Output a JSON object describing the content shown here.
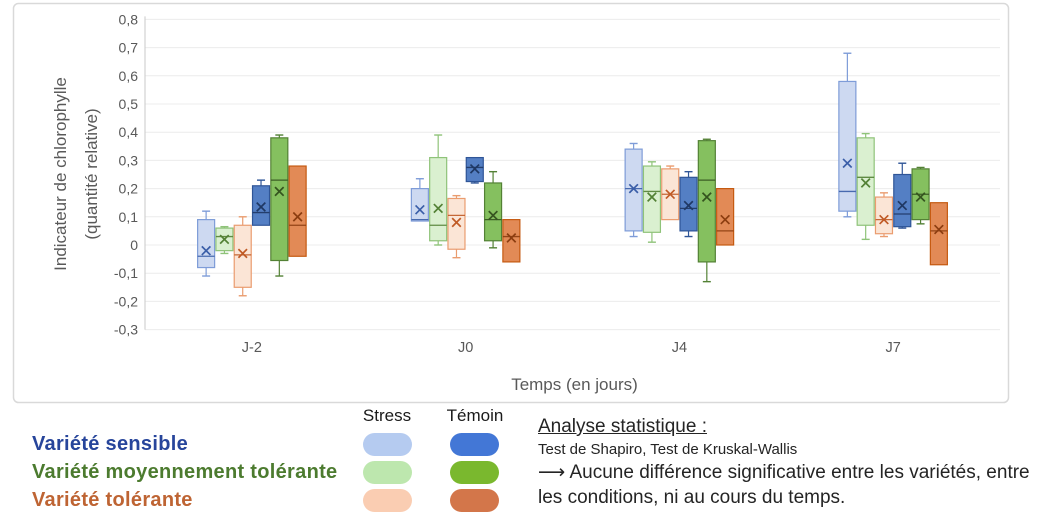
{
  "analysis": {
    "title": "Analyse statistique :",
    "line1": "Test de Shapiro, Test de Kruskal-Wallis",
    "arrow": "⟶",
    "line2": "Aucune différence significative entre les variétés, entre les conditions, ni au cours du temps."
  },
  "legend": {
    "headers": {
      "stress": "Stress",
      "temoin": "Témoin"
    },
    "rows": [
      {
        "id": "sensible",
        "label": "Variété sensible",
        "label_color": "#27459B",
        "stress_color": "#B5CBF0",
        "temoin_color": "#4377D6"
      },
      {
        "id": "moyenne",
        "label": "Variété moyennement tolérante",
        "label_color": "#4C7B2F",
        "stress_color": "#BDE7AE",
        "temoin_color": "#7AB82E"
      },
      {
        "id": "tolerante",
        "label": "Variété tolérante",
        "label_color": "#BE6433",
        "stress_color": "#FACDB2",
        "temoin_color": "#D3764A"
      }
    ]
  },
  "chart_data": {
    "type": "boxplot",
    "title": "",
    "xlabel": "Temps (en jours)",
    "ylabel_lines": [
      "Indicateur de chlorophylle",
      "(quantité relative)"
    ],
    "categories": [
      "J-2",
      "J0",
      "J4",
      "J7"
    ],
    "ylim": [
      -0.3,
      0.8
    ],
    "ytick_step": 0.1,
    "grid": true,
    "decimal_separator": ",",
    "colors": {
      "panel_border": "#D9D9D9",
      "gridline": "#ECECEC",
      "axis_line": "#C9C9C9",
      "tick_label": "#595959",
      "axis_title": "#595959"
    },
    "series": [
      {
        "name": "Variété sensible – Stress",
        "fill": "#CDD9F1",
        "stroke": "#7E9CD8",
        "accent": "#3A5EA8",
        "boxes": [
          {
            "min": -0.11,
            "q1": -0.08,
            "med": -0.04,
            "q3": 0.09,
            "max": 0.12,
            "mean": -0.02
          },
          {
            "min": 0.085,
            "q1": 0.085,
            "med": 0.09,
            "q3": 0.2,
            "max": 0.235,
            "mean": 0.125
          },
          {
            "min": 0.03,
            "q1": 0.05,
            "med": 0.2,
            "q3": 0.34,
            "max": 0.36,
            "mean": 0.2
          },
          {
            "min": 0.1,
            "q1": 0.12,
            "med": 0.19,
            "q3": 0.58,
            "max": 0.68,
            "mean": 0.29
          }
        ]
      },
      {
        "name": "Variété moyennement tolérante – Stress",
        "fill": "#DAF0D0",
        "stroke": "#8FC379",
        "accent": "#538135",
        "boxes": [
          {
            "min": -0.03,
            "q1": -0.02,
            "med": 0.03,
            "q3": 0.06,
            "max": 0.065,
            "mean": 0.02
          },
          {
            "min": 0.0,
            "q1": 0.015,
            "med": 0.07,
            "q3": 0.31,
            "max": 0.39,
            "mean": 0.13
          },
          {
            "min": 0.01,
            "q1": 0.045,
            "med": 0.19,
            "q3": 0.28,
            "max": 0.295,
            "mean": 0.17
          },
          {
            "min": 0.02,
            "q1": 0.07,
            "med": 0.24,
            "q3": 0.38,
            "max": 0.395,
            "mean": 0.22
          }
        ]
      },
      {
        "name": "Variété tolérante – Stress",
        "fill": "#FBE5D6",
        "stroke": "#EA9C6F",
        "accent": "#C05A25",
        "boxes": [
          {
            "min": -0.18,
            "q1": -0.15,
            "med": -0.035,
            "q3": 0.07,
            "max": 0.1,
            "mean": -0.03
          },
          {
            "min": -0.045,
            "q1": -0.015,
            "med": 0.105,
            "q3": 0.165,
            "max": 0.175,
            "mean": 0.08
          },
          {
            "min": 0.09,
            "q1": 0.09,
            "med": 0.18,
            "q3": 0.27,
            "max": 0.28,
            "mean": 0.18
          },
          {
            "min": 0.03,
            "q1": 0.04,
            "med": 0.09,
            "q3": 0.17,
            "max": 0.185,
            "mean": 0.09
          }
        ]
      },
      {
        "name": "Variété sensible – Témoin",
        "fill": "#547FC4",
        "stroke": "#2F5597",
        "accent": "#1F3864",
        "boxes": [
          {
            "min": 0.07,
            "q1": 0.07,
            "med": 0.115,
            "q3": 0.21,
            "max": 0.23,
            "mean": 0.135
          },
          {
            "min": 0.22,
            "q1": 0.225,
            "med": 0.275,
            "q3": 0.31,
            "max": 0.31,
            "mean": 0.27
          },
          {
            "min": 0.03,
            "q1": 0.05,
            "med": 0.13,
            "q3": 0.24,
            "max": 0.26,
            "mean": 0.14
          },
          {
            "min": 0.06,
            "q1": 0.065,
            "med": 0.11,
            "q3": 0.25,
            "max": 0.29,
            "mean": 0.14
          }
        ]
      },
      {
        "name": "Variété moyennement tolérante – Témoin",
        "fill": "#85C05F",
        "stroke": "#538135",
        "accent": "#35541F",
        "boxes": [
          {
            "min": -0.11,
            "q1": -0.055,
            "med": 0.23,
            "q3": 0.38,
            "max": 0.39,
            "mean": 0.19
          },
          {
            "min": -0.01,
            "q1": 0.015,
            "med": 0.09,
            "q3": 0.22,
            "max": 0.26,
            "mean": 0.105
          },
          {
            "min": -0.13,
            "q1": -0.06,
            "med": 0.23,
            "q3": 0.37,
            "max": 0.375,
            "mean": 0.17
          },
          {
            "min": 0.075,
            "q1": 0.09,
            "med": 0.18,
            "q3": 0.27,
            "max": 0.275,
            "mean": 0.17
          }
        ]
      },
      {
        "name": "Variété tolérante – Témoin",
        "fill": "#E28A56",
        "stroke": "#C55A11",
        "accent": "#8C3D10",
        "boxes": [
          {
            "min": -0.04,
            "q1": -0.04,
            "med": 0.07,
            "q3": 0.28,
            "max": 0.28,
            "mean": 0.1
          },
          {
            "min": -0.06,
            "q1": -0.06,
            "med": 0.03,
            "q3": 0.09,
            "max": 0.09,
            "mean": 0.025
          },
          {
            "min": 0.0,
            "q1": 0.0,
            "med": 0.05,
            "q3": 0.2,
            "max": 0.2,
            "mean": 0.09
          },
          {
            "min": -0.07,
            "q1": -0.07,
            "med": 0.05,
            "q3": 0.15,
            "max": 0.15,
            "mean": 0.055
          }
        ]
      }
    ]
  }
}
